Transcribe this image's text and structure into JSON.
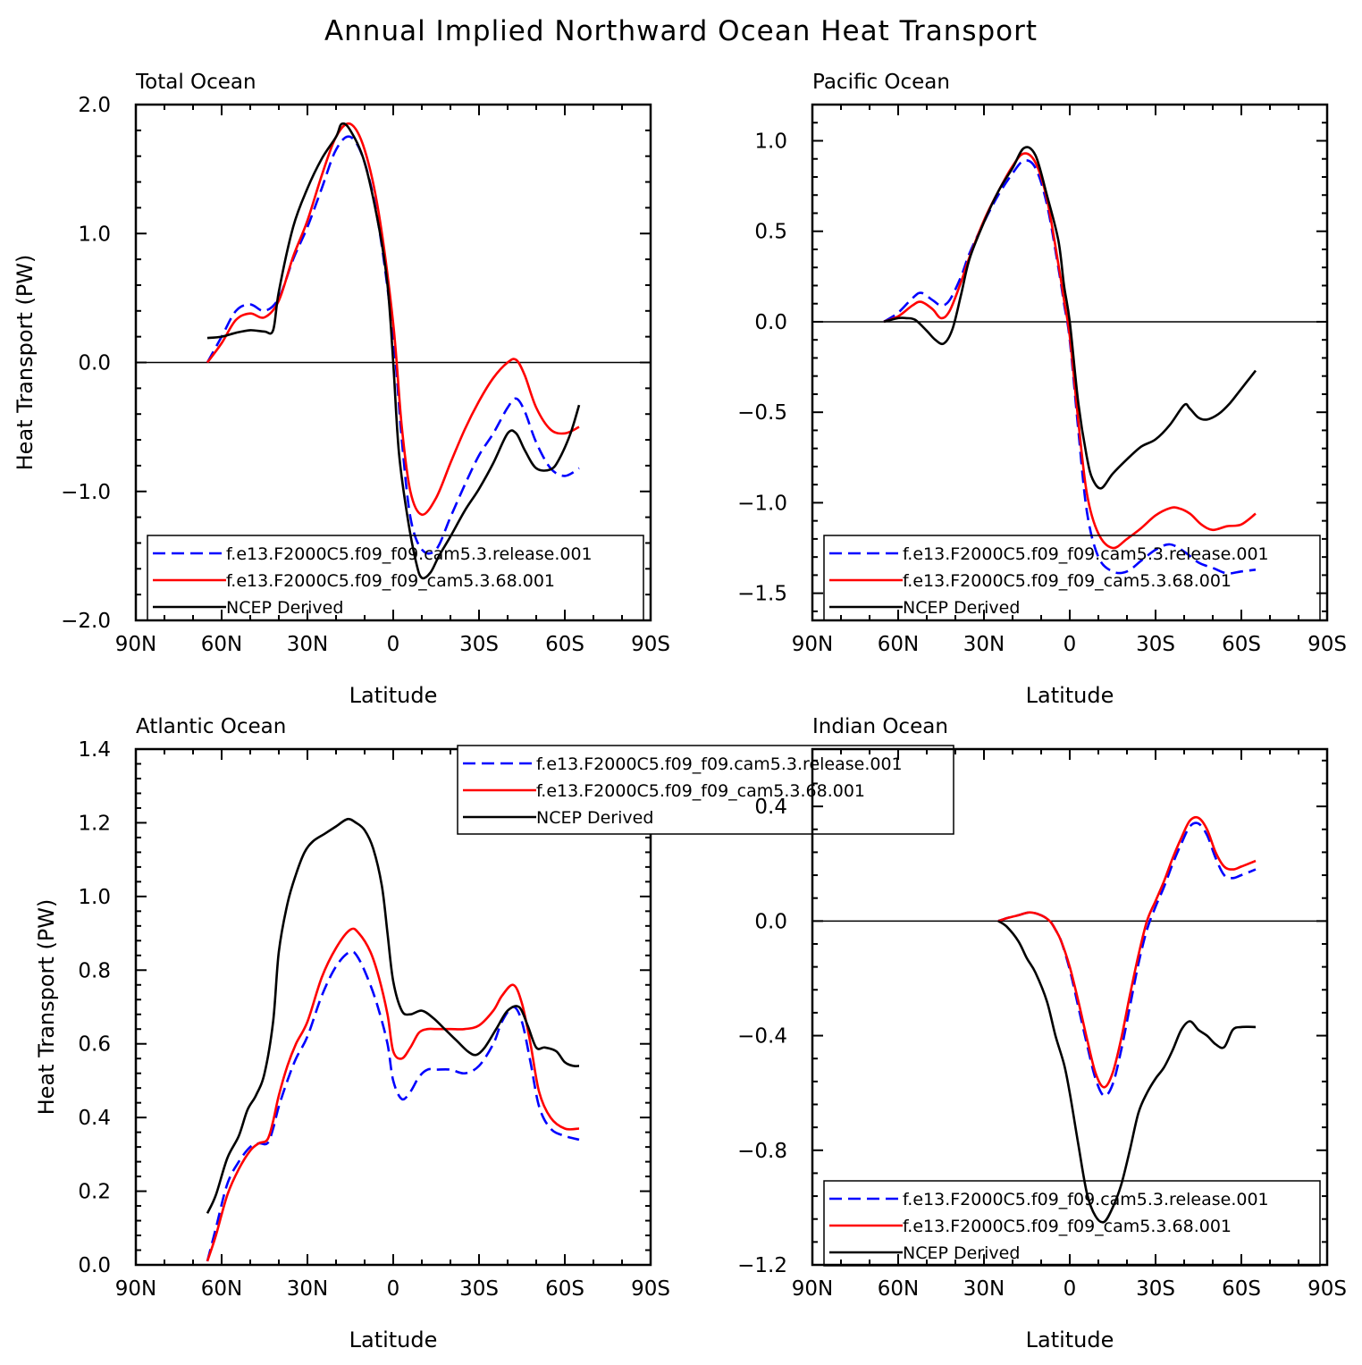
{
  "title": "Annual Implied Northward Ocean Heat Transport",
  "chart_data": [
    {
      "type": "line",
      "title": "Total Ocean",
      "xlabel": "Latitude",
      "ylabel": "Heat Transport (PW)",
      "x_reversed": true,
      "xlim": [
        90,
        -90
      ],
      "ylim": [
        -2.0,
        2.0
      ],
      "xticks": [
        90,
        60,
        30,
        0,
        -30,
        -60,
        -90
      ],
      "xtick_labels": [
        "90N",
        "60N",
        "30N",
        "0",
        "30S",
        "60S",
        "90S"
      ],
      "yticks": [
        -2.0,
        -1.0,
        0.0,
        1.0,
        2.0
      ],
      "ytick_labels": [
        "−2.0",
        "−1.0",
        "0.0",
        "1.0",
        "2.0"
      ],
      "zero_line": true,
      "legend_position": "bottom-left",
      "series": [
        {
          "name": "f.e13.F2000C5.f09_f09.cam5.3.release.001",
          "color": "#0000ff",
          "dash": "dashed",
          "x": [
            65,
            60,
            55,
            50,
            45,
            40,
            35,
            30,
            25,
            20,
            15,
            10,
            5,
            0,
            -3,
            -6,
            -10,
            -15,
            -20,
            -25,
            -30,
            -35,
            -40,
            -43,
            -46,
            -50,
            -55,
            -60,
            -65
          ],
          "y": [
            0.0,
            0.2,
            0.4,
            0.45,
            0.4,
            0.5,
            0.8,
            1.05,
            1.35,
            1.65,
            1.75,
            1.55,
            1.05,
            0.2,
            -0.6,
            -1.2,
            -1.45,
            -1.45,
            -1.2,
            -0.95,
            -0.72,
            -0.55,
            -0.35,
            -0.28,
            -0.38,
            -0.62,
            -0.82,
            -0.88,
            -0.82
          ]
        },
        {
          "name": "f.e13.F2000C5.f09_f09_cam5.3.68.001",
          "color": "#ff0000",
          "dash": "solid",
          "x": [
            65,
            60,
            55,
            50,
            45,
            40,
            35,
            30,
            25,
            20,
            15,
            10,
            5,
            0,
            -3,
            -6,
            -10,
            -15,
            -20,
            -25,
            -30,
            -35,
            -40,
            -43,
            -46,
            -50,
            -55,
            -60,
            -65
          ],
          "y": [
            0.0,
            0.15,
            0.33,
            0.38,
            0.35,
            0.48,
            0.82,
            1.1,
            1.45,
            1.75,
            1.85,
            1.65,
            1.15,
            0.3,
            -0.5,
            -1.0,
            -1.18,
            -1.05,
            -0.78,
            -0.52,
            -0.3,
            -0.12,
            -0.0,
            0.02,
            -0.1,
            -0.35,
            -0.52,
            -0.55,
            -0.5
          ]
        },
        {
          "name": "NCEP Derived",
          "color": "#000000",
          "dash": "solid",
          "x": [
            65,
            60,
            55,
            50,
            45,
            42,
            40,
            35,
            30,
            25,
            20,
            18,
            15,
            10,
            5,
            2,
            0,
            -2,
            -5,
            -8,
            -10,
            -13,
            -16,
            -20,
            -25,
            -30,
            -35,
            -40,
            -43,
            -46,
            -50,
            -55,
            -58,
            -62,
            -65
          ],
          "y": [
            0.19,
            0.2,
            0.23,
            0.25,
            0.24,
            0.25,
            0.55,
            1.05,
            1.35,
            1.58,
            1.75,
            1.85,
            1.8,
            1.55,
            1.05,
            0.6,
            0.0,
            -0.7,
            -1.2,
            -1.55,
            -1.67,
            -1.63,
            -1.5,
            -1.35,
            -1.15,
            -0.98,
            -0.78,
            -0.55,
            -0.55,
            -0.68,
            -0.82,
            -0.83,
            -0.75,
            -0.55,
            -0.33
          ]
        }
      ]
    },
    {
      "type": "line",
      "title": "Pacific Ocean",
      "xlabel": "Latitude",
      "ylabel": "",
      "x_reversed": true,
      "xlim": [
        90,
        -90
      ],
      "ylim": [
        -1.65,
        1.2
      ],
      "xticks": [
        90,
        60,
        30,
        0,
        -30,
        -60,
        -90
      ],
      "xtick_labels": [
        "90N",
        "60N",
        "30N",
        "0",
        "30S",
        "60S",
        "90S"
      ],
      "yticks": [
        -1.5,
        -1.0,
        -0.5,
        0.0,
        0.5,
        1.0
      ],
      "ytick_labels": [
        "−1.5",
        "−1.0",
        "−0.5",
        "0.0",
        "0.5",
        "1.0"
      ],
      "zero_line": true,
      "legend_position": "bottom-left",
      "series": [
        {
          "name": "f.e13.F2000C5.f09_f09.cam5.3.release.001",
          "color": "#0000ff",
          "dash": "dashed",
          "x": [
            65,
            60,
            55,
            52,
            48,
            45,
            42,
            38,
            35,
            30,
            25,
            20,
            16,
            12,
            8,
            4,
            2,
            0,
            -3,
            -6,
            -10,
            -15,
            -20,
            -25,
            -30,
            -35,
            -40,
            -45,
            -50,
            -55,
            -60,
            -65
          ],
          "y": [
            0.0,
            0.05,
            0.13,
            0.16,
            0.12,
            0.09,
            0.12,
            0.25,
            0.38,
            0.55,
            0.7,
            0.82,
            0.89,
            0.85,
            0.65,
            0.3,
            0.1,
            -0.1,
            -0.6,
            -1.05,
            -1.3,
            -1.38,
            -1.38,
            -1.32,
            -1.26,
            -1.23,
            -1.27,
            -1.33,
            -1.36,
            -1.39,
            -1.38,
            -1.37
          ]
        },
        {
          "name": "f.e13.F2000C5.f09_f09_cam5.3.68.001",
          "color": "#ff0000",
          "dash": "solid",
          "x": [
            65,
            60,
            55,
            52,
            48,
            45,
            42,
            38,
            35,
            30,
            25,
            20,
            16,
            12,
            8,
            4,
            2,
            0,
            -3,
            -6,
            -10,
            -15,
            -20,
            -25,
            -30,
            -35,
            -38,
            -42,
            -46,
            -50,
            -55,
            -60,
            -65
          ],
          "y": [
            0.0,
            0.03,
            0.09,
            0.11,
            0.07,
            0.02,
            0.06,
            0.22,
            0.36,
            0.56,
            0.72,
            0.86,
            0.93,
            0.88,
            0.68,
            0.32,
            0.12,
            -0.08,
            -0.55,
            -0.95,
            -1.17,
            -1.25,
            -1.2,
            -1.14,
            -1.07,
            -1.03,
            -1.03,
            -1.06,
            -1.12,
            -1.15,
            -1.13,
            -1.12,
            -1.06
          ]
        },
        {
          "name": "NCEP Derived",
          "color": "#000000",
          "dash": "solid",
          "x": [
            65,
            60,
            57,
            54,
            50,
            47,
            44,
            41,
            38,
            35,
            30,
            25,
            20,
            16,
            12,
            8,
            4,
            2,
            0,
            -3,
            -6,
            -8,
            -11,
            -15,
            -20,
            -25,
            -30,
            -35,
            -40,
            -42,
            -45,
            -48,
            -52,
            -56,
            -60,
            -65
          ],
          "y": [
            0.0,
            0.02,
            0.02,
            0.01,
            -0.05,
            -0.1,
            -0.12,
            -0.04,
            0.15,
            0.35,
            0.55,
            0.72,
            0.85,
            0.96,
            0.92,
            0.7,
            0.45,
            0.2,
            0.0,
            -0.45,
            -0.75,
            -0.87,
            -0.92,
            -0.84,
            -0.76,
            -0.69,
            -0.65,
            -0.57,
            -0.46,
            -0.48,
            -0.53,
            -0.54,
            -0.51,
            -0.45,
            -0.37,
            -0.27
          ]
        }
      ]
    },
    {
      "type": "line",
      "title": "Atlantic Ocean",
      "xlabel": "Latitude",
      "ylabel": "Heat Transport (PW)",
      "x_reversed": true,
      "xlim": [
        90,
        -90
      ],
      "ylim": [
        0.0,
        1.4
      ],
      "xticks": [
        90,
        60,
        30,
        0,
        -30,
        -60,
        -90
      ],
      "xtick_labels": [
        "90N",
        "60N",
        "30N",
        "0",
        "30S",
        "60S",
        "90S"
      ],
      "yticks": [
        0.0,
        0.2,
        0.4,
        0.6,
        0.8,
        1.0,
        1.2,
        1.4
      ],
      "ytick_labels": [
        "0.0",
        "0.2",
        "0.4",
        "0.6",
        "0.8",
        "1.0",
        "1.2",
        "1.4"
      ],
      "zero_line": false,
      "legend_position": "top-right",
      "series": [
        {
          "name": "f.e13.F2000C5.f09_f09.cam5.3.release.001",
          "color": "#0000ff",
          "dash": "dashed",
          "x": [
            65,
            62,
            58,
            54,
            50,
            47,
            44,
            42,
            40,
            37,
            34,
            30,
            25,
            20,
            15,
            12,
            8,
            5,
            2,
            0,
            -3,
            -6,
            -9,
            -12,
            -15,
            -20,
            -25,
            -30,
            -35,
            -38,
            -42,
            -45,
            -48,
            -51,
            -55,
            -60,
            -65
          ],
          "y": [
            0.01,
            0.1,
            0.22,
            0.28,
            0.32,
            0.33,
            0.33,
            0.37,
            0.43,
            0.5,
            0.56,
            0.62,
            0.73,
            0.81,
            0.85,
            0.83,
            0.76,
            0.69,
            0.6,
            0.5,
            0.45,
            0.47,
            0.51,
            0.53,
            0.53,
            0.53,
            0.52,
            0.54,
            0.6,
            0.66,
            0.7,
            0.66,
            0.55,
            0.43,
            0.37,
            0.35,
            0.34
          ]
        },
        {
          "name": "f.e13.F2000C5.f09_f09_cam5.3.68.001",
          "color": "#ff0000",
          "dash": "solid",
          "x": [
            65,
            62,
            58,
            54,
            50,
            47,
            44,
            42,
            40,
            37,
            34,
            30,
            25,
            20,
            15,
            12,
            8,
            5,
            2,
            0,
            -3,
            -6,
            -9,
            -12,
            -15,
            -20,
            -25,
            -30,
            -35,
            -38,
            -42,
            -45,
            -48,
            -51,
            -55,
            -60,
            -65
          ],
          "y": [
            0.01,
            0.08,
            0.19,
            0.26,
            0.31,
            0.33,
            0.34,
            0.39,
            0.46,
            0.54,
            0.6,
            0.66,
            0.78,
            0.86,
            0.91,
            0.9,
            0.85,
            0.78,
            0.68,
            0.58,
            0.56,
            0.59,
            0.63,
            0.64,
            0.64,
            0.64,
            0.64,
            0.65,
            0.69,
            0.73,
            0.76,
            0.71,
            0.6,
            0.47,
            0.4,
            0.37,
            0.37
          ]
        },
        {
          "name": "NCEP Derived",
          "color": "#000000",
          "dash": "solid",
          "x": [
            65,
            62,
            58,
            54,
            51,
            48,
            45,
            42,
            40,
            37,
            34,
            31,
            28,
            24,
            20,
            16,
            13,
            10,
            7,
            4,
            2,
            0,
            -3,
            -6,
            -10,
            -14,
            -18,
            -22,
            -26,
            -29,
            -32,
            -36,
            -40,
            -44,
            -47,
            -50,
            -53,
            -57,
            -60,
            -63,
            -65
          ],
          "y": [
            0.14,
            0.19,
            0.29,
            0.35,
            0.42,
            0.46,
            0.52,
            0.66,
            0.85,
            0.98,
            1.06,
            1.12,
            1.15,
            1.17,
            1.19,
            1.21,
            1.2,
            1.18,
            1.13,
            1.03,
            0.9,
            0.77,
            0.69,
            0.68,
            0.69,
            0.67,
            0.64,
            0.61,
            0.58,
            0.57,
            0.59,
            0.64,
            0.69,
            0.7,
            0.65,
            0.59,
            0.59,
            0.58,
            0.55,
            0.54,
            0.54
          ]
        }
      ]
    },
    {
      "type": "line",
      "title": "Indian Ocean",
      "xlabel": "Latitude",
      "ylabel": "",
      "x_reversed": true,
      "xlim": [
        90,
        -90
      ],
      "ylim": [
        -1.2,
        0.6
      ],
      "xticks": [
        90,
        60,
        30,
        0,
        -30,
        -60,
        -90
      ],
      "xtick_labels": [
        "90N",
        "60N",
        "30N",
        "0",
        "30S",
        "60S",
        "90S"
      ],
      "yticks": [
        -1.2,
        -0.8,
        -0.4,
        0.0,
        0.4
      ],
      "ytick_labels": [
        "−1.2",
        "−0.8",
        "−0.4",
        "0.0",
        "0.4"
      ],
      "zero_line": true,
      "legend_position": "bottom-left",
      "series": [
        {
          "name": "f.e13.F2000C5.f09_f09.cam5.3.release.001",
          "color": "#0000ff",
          "dash": "dashed",
          "x": [
            25,
            22,
            18,
            14,
            10,
            7,
            5,
            3,
            0,
            -3,
            -6,
            -9,
            -12,
            -15,
            -18,
            -21,
            -24,
            -27,
            -30,
            -33,
            -36,
            -39,
            -42,
            -45,
            -48,
            -51,
            -54,
            -57,
            -60,
            -65
          ],
          "y": [
            0.0,
            0.01,
            0.02,
            0.03,
            0.02,
            0.0,
            -0.03,
            -0.07,
            -0.17,
            -0.3,
            -0.43,
            -0.55,
            -0.61,
            -0.57,
            -0.45,
            -0.3,
            -0.15,
            -0.03,
            0.05,
            0.12,
            0.2,
            0.27,
            0.33,
            0.34,
            0.3,
            0.22,
            0.16,
            0.15,
            0.16,
            0.18
          ]
        },
        {
          "name": "f.e13.F2000C5.f09_f09_cam5.3.68.001",
          "color": "#ff0000",
          "dash": "solid",
          "x": [
            25,
            22,
            18,
            14,
            10,
            7,
            5,
            3,
            0,
            -3,
            -6,
            -9,
            -12,
            -15,
            -18,
            -21,
            -24,
            -27,
            -30,
            -33,
            -36,
            -39,
            -42,
            -45,
            -48,
            -51,
            -54,
            -57,
            -60,
            -65
          ],
          "y": [
            0.0,
            0.01,
            0.02,
            0.03,
            0.02,
            0.0,
            -0.03,
            -0.07,
            -0.16,
            -0.28,
            -0.41,
            -0.53,
            -0.58,
            -0.53,
            -0.41,
            -0.26,
            -0.12,
            0.0,
            0.07,
            0.14,
            0.22,
            0.29,
            0.35,
            0.36,
            0.32,
            0.24,
            0.19,
            0.18,
            0.19,
            0.21
          ]
        },
        {
          "name": "NCEP Derived",
          "color": "#000000",
          "dash": "solid",
          "x": [
            25,
            22,
            18,
            15,
            12,
            8,
            5,
            2,
            0,
            -3,
            -6,
            -9,
            -12,
            -15,
            -18,
            -21,
            -24,
            -27,
            -30,
            -33,
            -36,
            -39,
            -42,
            -45,
            -48,
            -51,
            -54,
            -57,
            -60,
            -65
          ],
          "y": [
            0.0,
            -0.02,
            -0.07,
            -0.13,
            -0.18,
            -0.28,
            -0.4,
            -0.5,
            -0.6,
            -0.78,
            -0.95,
            -1.03,
            -1.05,
            -1.0,
            -0.92,
            -0.8,
            -0.67,
            -0.6,
            -0.55,
            -0.51,
            -0.45,
            -0.38,
            -0.35,
            -0.38,
            -0.4,
            -0.43,
            -0.44,
            -0.38,
            -0.37,
            -0.37
          ]
        }
      ]
    }
  ]
}
